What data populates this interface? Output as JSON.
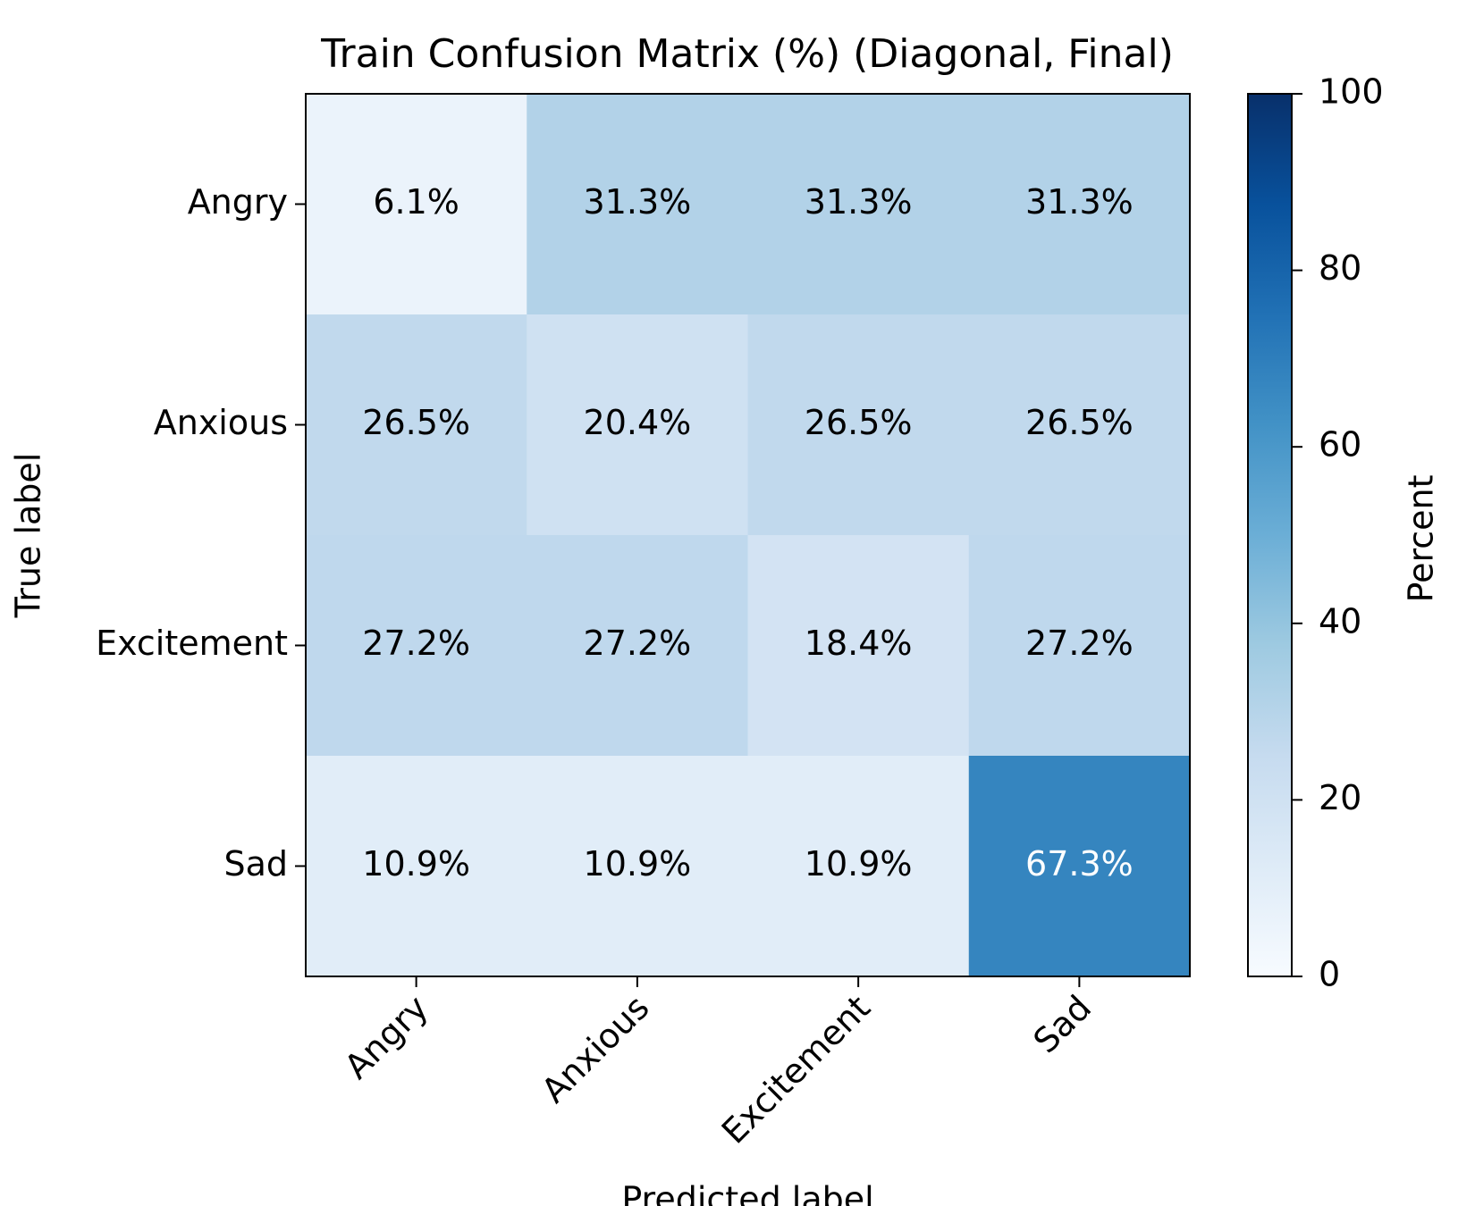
{
  "chart_data": {
    "type": "heatmap",
    "title": "Train Confusion Matrix (%) (Diagonal, Final)",
    "x_label": "Predicted label",
    "y_label": "True label",
    "x_categories": [
      "Angry",
      "Anxious",
      "Excitement",
      "Sad"
    ],
    "y_categories": [
      "Angry",
      "Anxious",
      "Excitement",
      "Sad"
    ],
    "values": [
      [
        6.1,
        31.3,
        31.3,
        31.3
      ],
      [
        26.5,
        20.4,
        26.5,
        26.5
      ],
      [
        27.2,
        27.2,
        18.4,
        27.2
      ],
      [
        10.9,
        10.9,
        10.9,
        67.3
      ]
    ],
    "value_labels": [
      [
        "6.1%",
        "31.3%",
        "31.3%",
        "31.3%"
      ],
      [
        "26.5%",
        "20.4%",
        "26.5%",
        "26.5%"
      ],
      [
        "27.2%",
        "27.2%",
        "18.4%",
        "27.2%"
      ],
      [
        "10.9%",
        "10.9%",
        "10.9%",
        "67.3%"
      ]
    ],
    "colormap": "Blues",
    "colorbar": {
      "label": "Percent",
      "ylim": [
        0,
        100
      ],
      "yticks": [
        0,
        20,
        40,
        60,
        80,
        100
      ]
    }
  }
}
